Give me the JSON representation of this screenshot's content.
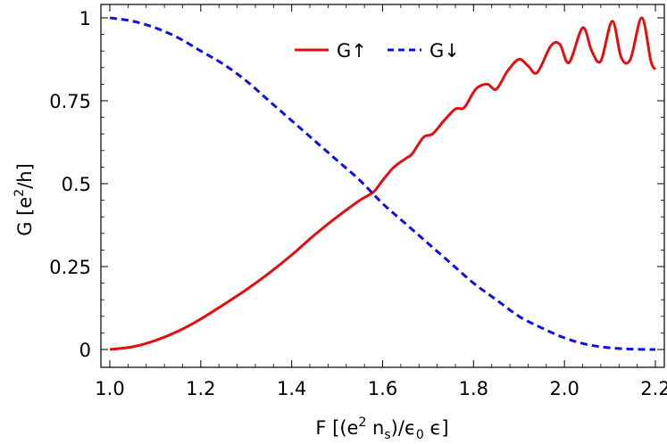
{
  "chart_data": {
    "type": "line",
    "xlabel": "F  [(e²nₛ)/ϵ₀ϵ]",
    "ylabel": "G  [e²/h]",
    "xlim": [
      1.0,
      2.2
    ],
    "ylim": [
      0,
      1
    ],
    "x_ticks": [
      "1.0",
      "1.2",
      "1.4",
      "1.6",
      "1.8",
      "2.0",
      "2.2"
    ],
    "y_ticks": [
      "0",
      "0.25",
      "0.5",
      "0.75",
      "1"
    ],
    "grid": false,
    "legend_position": "top-right",
    "colors": {
      "up": "#e01010",
      "down": "#1010e0"
    },
    "series": [
      {
        "name": "G↑",
        "style": "solid",
        "x": [
          1.0,
          1.05,
          1.1,
          1.15,
          1.2,
          1.25,
          1.3,
          1.35,
          1.4,
          1.45,
          1.5,
          1.55,
          1.58,
          1.6,
          1.625,
          1.65,
          1.665,
          1.69,
          1.71,
          1.735,
          1.76,
          1.78,
          1.805,
          1.83,
          1.85,
          1.875,
          1.9,
          1.92,
          1.94,
          1.97,
          1.99,
          2.01,
          2.04,
          2.06,
          2.08,
          2.105,
          2.125,
          2.145,
          2.17,
          2.19,
          2.2
        ],
        "y": [
          0.0,
          0.008,
          0.027,
          0.055,
          0.092,
          0.135,
          0.18,
          0.23,
          0.285,
          0.345,
          0.4,
          0.45,
          0.475,
          0.51,
          0.55,
          0.575,
          0.59,
          0.64,
          0.65,
          0.69,
          0.725,
          0.73,
          0.785,
          0.8,
          0.785,
          0.84,
          0.875,
          0.855,
          0.835,
          0.915,
          0.92,
          0.865,
          0.97,
          0.9,
          0.87,
          0.99,
          0.88,
          0.875,
          1.0,
          0.87,
          0.845
        ]
      },
      {
        "name": "G↓",
        "style": "dashed",
        "x": [
          1.0,
          1.05,
          1.1,
          1.15,
          1.2,
          1.25,
          1.3,
          1.35,
          1.4,
          1.45,
          1.5,
          1.55,
          1.6,
          1.65,
          1.7,
          1.75,
          1.8,
          1.85,
          1.9,
          1.95,
          2.0,
          2.05,
          2.1,
          2.15,
          2.2
        ],
        "y": [
          1.0,
          0.99,
          0.97,
          0.94,
          0.9,
          0.86,
          0.81,
          0.75,
          0.69,
          0.63,
          0.57,
          0.51,
          0.44,
          0.38,
          0.32,
          0.26,
          0.2,
          0.15,
          0.1,
          0.065,
          0.035,
          0.015,
          0.005,
          0.001,
          0.0
        ]
      }
    ]
  }
}
